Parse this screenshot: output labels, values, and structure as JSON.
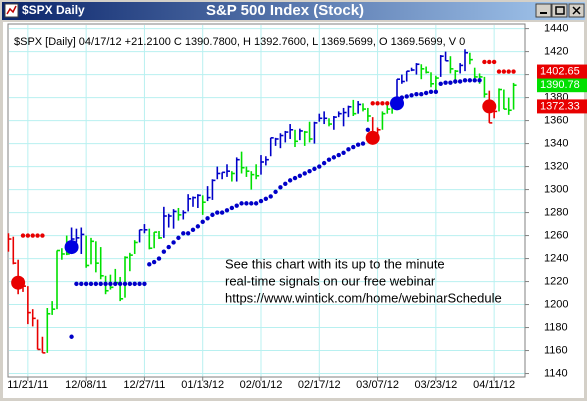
{
  "chart_data": {
    "type": "ohlc",
    "window_title": "$SPX Daily",
    "title": "S&P 500 Index (Stock)",
    "subtitle": "$SPX [Daily] 04/17/12  +21.2100 C 1390.7800, H 1392.7600, L 1369.5699, O 1369.5699, V 0",
    "annotation": [
      "See this chart with its up to the minute",
      "real-time signals on our free webinar",
      "https://www.wintick.com/home/webinarSchedule"
    ],
    "categories": [
      null,
      null,
      null,
      null,
      "11/21/11",
      null,
      null,
      null,
      null,
      null,
      null,
      null,
      null,
      null,
      null,
      null,
      "12/08/11",
      null,
      null,
      null,
      null,
      null,
      null,
      null,
      null,
      null,
      null,
      null,
      "12/27/11",
      null,
      null,
      null,
      null,
      null,
      null,
      null,
      null,
      null,
      null,
      null,
      "01/13/12",
      null,
      null,
      null,
      null,
      null,
      null,
      null,
      null,
      null,
      null,
      null,
      "02/01/12",
      null,
      null,
      null,
      null,
      null,
      null,
      null,
      null,
      null,
      null,
      null,
      "02/17/12",
      null,
      null,
      null,
      null,
      null,
      null,
      null,
      null,
      null,
      null,
      null,
      "03/07/12",
      null,
      null,
      null,
      null,
      null,
      null,
      null,
      null,
      null,
      null,
      null,
      "03/23/12",
      null,
      null,
      null,
      null,
      null,
      null,
      null,
      null,
      null,
      null,
      null,
      "04/11/12",
      null,
      null,
      null,
      null
    ],
    "high": [
      1262,
      1259,
      1239,
      1223,
      1216,
      1196,
      1187,
      1172,
      1197,
      1203,
      1247,
      1249,
      1260,
      1267,
      1266,
      1267,
      1260,
      1258,
      1255,
      1250,
      1225,
      1226,
      1231,
      1224,
      1242,
      1245,
      1256,
      1265,
      1270,
      1266,
      1263,
      1264,
      1285,
      1279,
      1283,
      1284,
      1282,
      1296,
      1294,
      1296,
      1295,
      1303,
      1309,
      1320,
      1315,
      1322,
      1316,
      1328,
      1333,
      1320,
      1316,
      1322,
      1330,
      1329,
      1345,
      1345,
      1349,
      1351,
      1357,
      1352,
      1353,
      1351,
      1359,
      1359,
      1366,
      1368,
      1362,
      1364,
      1368,
      1371,
      1373,
      1378,
      1377,
      1375,
      1371,
      1363,
      1354,
      1368,
      1374,
      1372,
      1396,
      1400,
      1403,
      1406,
      1410,
      1409,
      1407,
      1402,
      1399,
      1417,
      1420,
      1416,
      1404,
      1410,
      1422,
      1419,
      1406,
      1401,
      1398,
      1386,
      1375,
      1388,
      1387,
      1380,
      1392.76
    ],
    "low": [
      1246,
      1235,
      1209,
      1211,
      1183,
      1181,
      1161,
      1158,
      1158,
      1191,
      1196,
      1239,
      1243,
      1244,
      1254,
      1244,
      1232,
      1235,
      1228,
      1222,
      1209,
      1213,
      1217,
      1203,
      1206,
      1229,
      1244,
      1254,
      1262,
      1248,
      1249,
      1257,
      1258,
      1267,
      1266,
      1273,
      1274,
      1281,
      1285,
      1284,
      1278,
      1290,
      1291,
      1309,
      1309,
      1311,
      1307,
      1307,
      1314,
      1311,
      1300,
      1309,
      1313,
      1321,
      1329,
      1338,
      1336,
      1341,
      1344,
      1337,
      1343,
      1338,
      1341,
      1340,
      1359,
      1357,
      1355,
      1352,
      1363,
      1355,
      1363,
      1364,
      1366,
      1368,
      1359,
      1340,
      1343,
      1352,
      1366,
      1366,
      1372,
      1392,
      1394,
      1403,
      1400,
      1396,
      1401,
      1389,
      1386,
      1398,
      1412,
      1401,
      1392,
      1401,
      1403,
      1409,
      1396,
      1392,
      1380,
      1358,
      1362,
      1368,
      1370,
      1365,
      1369.5699
    ],
    "close": [
      1257,
      1236,
      1216,
      1216,
      1193,
      1188,
      1161,
      1158,
      1192,
      1196,
      1247,
      1244,
      1244,
      1257,
      1258,
      1261,
      1234,
      1255,
      1236,
      1225,
      1212,
      1215,
      1219,
      1205,
      1241,
      1243,
      1254,
      1265,
      1265,
      1249,
      1263,
      1258,
      1277,
      1277,
      1281,
      1278,
      1280,
      1292,
      1293,
      1295,
      1289,
      1293,
      1308,
      1314,
      1315,
      1316,
      1314,
      1326,
      1319,
      1316,
      1313,
      1312,
      1324,
      1326,
      1345,
      1344,
      1347,
      1350,
      1352,
      1342,
      1351,
      1350,
      1344,
      1358,
      1362,
      1362,
      1357,
      1363,
      1366,
      1367,
      1372,
      1366,
      1374,
      1370,
      1364,
      1343,
      1352,
      1366,
      1370,
      1371,
      1396,
      1394,
      1403,
      1404,
      1409,
      1405,
      1402,
      1392,
      1397,
      1416,
      1412,
      1405,
      1403,
      1408,
      1419,
      1413,
      1398,
      1398,
      1383,
      1358,
      1368,
      1387,
      1370,
      1369,
      1390.78
    ],
    "bar_codes": "rrrrrrrrgggggbbbgggggggggggbbgggbbbgbbbbgbbbbbgbggggbbbbbbbgbggbbbgbbbbgbggrrgggbbbbbggggbbggbbggggrrgggg",
    "palette": {
      "r": "#e80000",
      "g": "#00e000",
      "b": "#0000c8"
    },
    "stops": [
      {
        "color": "#e80000",
        "values": [
          null,
          null,
          null,
          1260,
          1260,
          1260,
          1260,
          1260,
          null,
          null,
          null,
          null,
          null,
          null,
          null,
          null,
          null,
          null,
          null,
          null,
          null,
          null,
          null,
          null,
          null,
          null,
          null,
          null,
          null,
          null,
          null,
          null,
          null,
          null,
          null,
          null,
          null,
          null,
          null,
          null,
          null,
          null,
          null,
          null,
          null,
          null,
          null,
          null,
          null,
          null,
          null,
          null,
          null,
          null,
          null,
          null,
          null,
          null,
          null,
          null,
          null,
          null,
          null,
          null,
          null,
          null,
          null,
          null,
          null,
          null,
          null,
          null,
          null,
          null,
          null,
          1375,
          1375,
          1375,
          1375,
          null,
          null,
          null,
          null,
          null,
          null,
          null,
          null,
          null,
          null,
          null,
          null,
          null,
          null,
          null,
          null,
          null,
          null,
          null,
          1411,
          1411,
          1411,
          1402.65,
          1402.65,
          1402.65,
          1402.65
        ]
      },
      {
        "color": "#0000c8",
        "values": [
          null,
          null,
          null,
          null,
          null,
          null,
          null,
          null,
          null,
          null,
          null,
          null,
          null,
          1172,
          1218,
          1218,
          1218,
          1218,
          1218,
          1218,
          1218,
          1218,
          1218,
          1218,
          1218,
          1218,
          1218,
          1218,
          1218,
          1235,
          1237,
          1240,
          1246,
          1250,
          1254,
          1258,
          1262,
          1262,
          1265,
          1268,
          1272,
          1275,
          1278,
          1280,
          1280,
          1282,
          1284,
          1286,
          1288,
          1288,
          1288,
          1288,
          1290,
          1292,
          1294,
          1298,
          1302,
          1305,
          1308,
          1310,
          1312,
          1314,
          1316,
          1318,
          1320,
          1323,
          1326,
          1328,
          1330,
          1332,
          1335,
          1337,
          1339,
          1340,
          1352,
          null,
          null,
          null,
          null,
          null,
          null,
          1380,
          1381,
          1382,
          1383,
          1383,
          1384,
          1385,
          1385,
          1392,
          1393,
          1393,
          1394,
          1394,
          1395,
          1395,
          1395,
          1395,
          null,
          null,
          null,
          null,
          null,
          null,
          null
        ]
      }
    ],
    "signals": [
      {
        "color": "#e80000",
        "values": [
          null,
          null,
          1219,
          null,
          null,
          null,
          null,
          null,
          null,
          null,
          null,
          null,
          null,
          null,
          null,
          null,
          null,
          null,
          null,
          null,
          null,
          null,
          null,
          null,
          null,
          null,
          null,
          null,
          null,
          null,
          null,
          null,
          null,
          null,
          null,
          null,
          null,
          null,
          null,
          null,
          null,
          null,
          null,
          null,
          null,
          null,
          null,
          null,
          null,
          null,
          null,
          null,
          null,
          null,
          null,
          null,
          null,
          null,
          null,
          null,
          null,
          null,
          null,
          null,
          null,
          null,
          null,
          null,
          null,
          null,
          null,
          null,
          null,
          null,
          null,
          1345,
          null,
          null,
          null,
          null,
          null,
          null,
          null,
          null,
          null,
          null,
          null,
          null,
          null,
          null,
          null,
          null,
          null,
          null,
          null,
          null,
          null,
          null,
          null,
          1372.33,
          null,
          null,
          null,
          null,
          null
        ]
      },
      {
        "color": "#0000e0",
        "values": [
          null,
          null,
          null,
          null,
          null,
          null,
          null,
          null,
          null,
          null,
          null,
          null,
          null,
          1250,
          null,
          null,
          null,
          null,
          null,
          null,
          null,
          null,
          null,
          null,
          null,
          null,
          null,
          null,
          null,
          null,
          null,
          null,
          null,
          null,
          null,
          null,
          null,
          null,
          null,
          null,
          null,
          null,
          null,
          null,
          null,
          null,
          null,
          null,
          null,
          null,
          null,
          null,
          null,
          null,
          null,
          null,
          null,
          null,
          null,
          null,
          null,
          null,
          null,
          null,
          null,
          null,
          null,
          null,
          null,
          null,
          null,
          null,
          null,
          null,
          null,
          null,
          null,
          null,
          null,
          null,
          1375,
          null,
          null,
          null,
          null,
          null,
          null,
          null,
          null,
          null,
          null,
          null,
          null,
          null,
          null,
          null,
          null,
          null,
          null,
          null,
          null,
          null,
          null,
          null,
          null
        ]
      }
    ],
    "close_color": "#00e000",
    "ylim": [
      1137,
      1444
    ],
    "yticks": [
      1140,
      1160,
      1180,
      1200,
      1220,
      1240,
      1260,
      1280,
      1300,
      1320,
      1340,
      1360,
      1380,
      1400,
      1420,
      1440
    ],
    "grid": true,
    "grid_color": "#b8f0f0"
  }
}
